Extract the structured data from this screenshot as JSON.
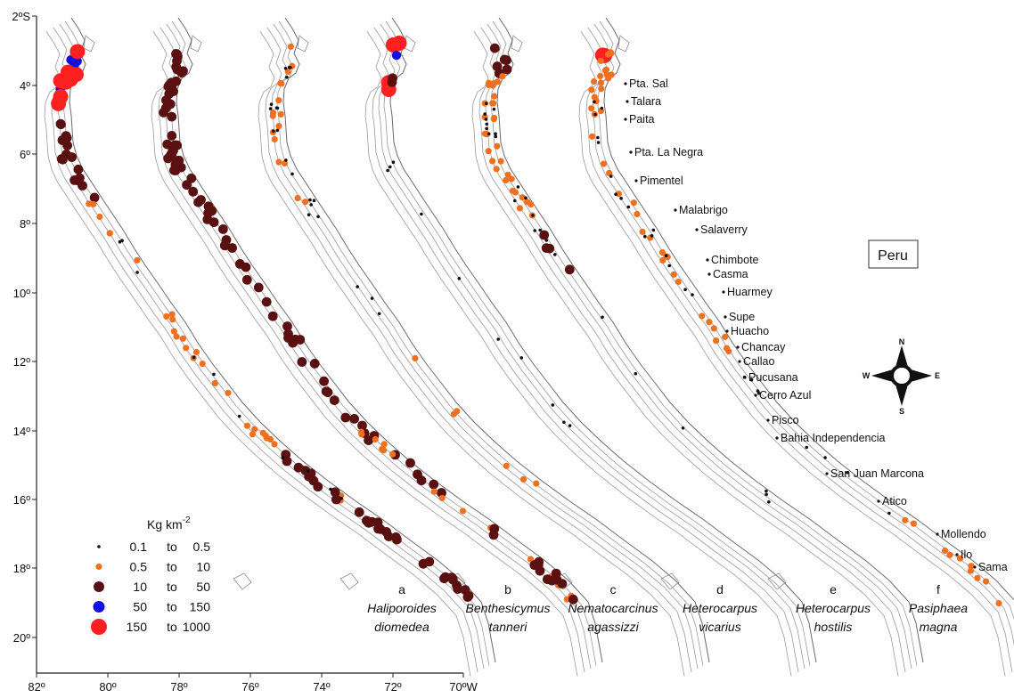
{
  "axes": {
    "lat_labels": [
      "2ºS",
      "4º",
      "6º",
      "8º",
      "10º",
      "12º",
      "14º",
      "16º",
      "18º",
      "20º"
    ],
    "lon_labels": [
      "82º",
      "80º",
      "78º",
      "76º",
      "74º",
      "72º",
      "70ºW"
    ]
  },
  "country": "Peru",
  "legend": {
    "title": "Kg km",
    "title_exp": "-2",
    "classes": [
      {
        "from": "0.1",
        "to_word": "to",
        "to": "0.5",
        "color": "#111111",
        "size": "xs"
      },
      {
        "from": "0.5",
        "to_word": "to",
        "to": "10",
        "color": "#f07020",
        "size": "s"
      },
      {
        "from": "10",
        "to_word": "to",
        "to": "50",
        "color": "#5a1010",
        "size": "m"
      },
      {
        "from": "50",
        "to_word": "to",
        "to": "150",
        "color": "#1010e0",
        "size": "l"
      },
      {
        "from": "150",
        "to_word": "to",
        "to": "1000",
        "color": "#ff2020",
        "size": "xl"
      }
    ]
  },
  "panels": [
    {
      "letter": "a",
      "genus": "Haliporoides",
      "species": "diomedea"
    },
    {
      "letter": "b",
      "genus": "Benthesicymus",
      "species": "tanneri"
    },
    {
      "letter": "c",
      "genus": "Nematocarcinus",
      "species": "agassizzi"
    },
    {
      "letter": "d",
      "genus": "Heterocarpus",
      "species": "vicarius"
    },
    {
      "letter": "e",
      "genus": "Heterocarpus",
      "species": "hostilis"
    },
    {
      "letter": "f",
      "genus": "Pasiphaea",
      "species": "magna"
    }
  ],
  "localities": [
    "Pta. Sal",
    "Talara",
    "Paita",
    "Pta. La Negra",
    "Pimentel",
    "Malabrigo",
    "Salaverry",
    "Chimbote",
    "Casma",
    "Huarmey",
    "Supe",
    "Huacho",
    "Chancay",
    "Callao",
    "Pucusana",
    "Cerro Azul",
    "Pisco",
    "Bahia Independencia",
    "San Juan Marcona",
    "Atico",
    "Mollendo",
    "Ilo",
    "Sama"
  ],
  "compass": {
    "n": "N",
    "s": "S",
    "e": "E",
    "w": "W"
  }
}
